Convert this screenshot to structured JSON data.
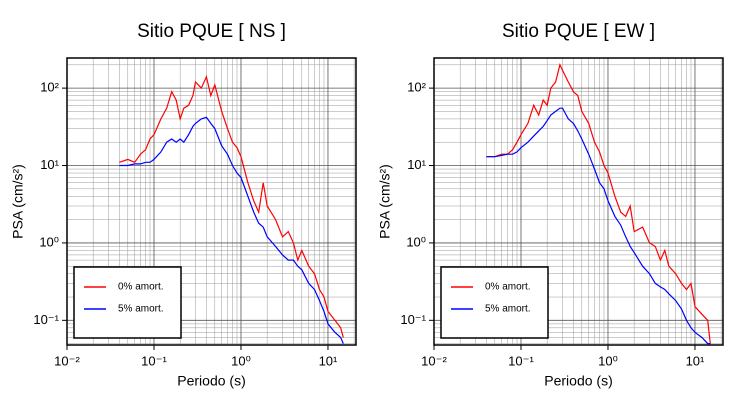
{
  "chart_data": [
    {
      "type": "line",
      "title": "Sitio PQUE [ NS ]",
      "x_label": "Periodo (s)",
      "y_label": "PSA (cm/s²)",
      "log_x": true,
      "log_y": true,
      "grid": true,
      "legend": "lower left",
      "xlim": [
        0.01,
        21
      ],
      "ylim": [
        0.048,
        245
      ],
      "xticks": [
        {
          "value": 0.01,
          "label": "10⁻²"
        },
        {
          "value": 0.1,
          "label": "10⁻¹"
        },
        {
          "value": 1,
          "label": "10⁰"
        },
        {
          "value": 10,
          "label": "10¹"
        }
      ],
      "yticks": [
        {
          "value": 0.1,
          "label": "10⁻¹"
        },
        {
          "value": 1,
          "label": "10⁰"
        },
        {
          "value": 10,
          "label": "10¹"
        },
        {
          "value": 100,
          "label": "10²"
        }
      ],
      "x_minor_ticks": [
        0.02,
        0.03,
        0.04,
        0.05,
        0.06,
        0.07,
        0.08,
        0.09,
        0.2,
        0.3,
        0.4,
        0.5,
        0.6,
        0.7,
        0.8,
        0.9,
        2,
        3,
        4,
        5,
        6,
        7,
        8,
        9,
        20
      ],
      "y_minor_ticks": [
        0.05,
        0.06,
        0.07,
        0.08,
        0.09,
        0.2,
        0.3,
        0.4,
        0.5,
        0.6,
        0.7,
        0.8,
        0.9,
        2,
        3,
        4,
        5,
        6,
        7,
        8,
        9,
        20,
        30,
        40,
        50,
        60,
        70,
        80,
        90,
        200
      ],
      "x": [
        0.04,
        0.05,
        0.06,
        0.07,
        0.08,
        0.09,
        0.1,
        0.12,
        0.14,
        0.16,
        0.18,
        0.2,
        0.22,
        0.25,
        0.28,
        0.3,
        0.35,
        0.4,
        0.45,
        0.5,
        0.6,
        0.7,
        0.8,
        0.9,
        1.0,
        1.2,
        1.4,
        1.6,
        1.8,
        2,
        2.5,
        3,
        3.5,
        4,
        4.5,
        5,
        6,
        7,
        8,
        9,
        10,
        12,
        14,
        15
      ],
      "series": [
        {
          "name": "0% amort.",
          "color": "#ff0000",
          "values": [
            11,
            12,
            11,
            14,
            16,
            22,
            25,
            40,
            55,
            90,
            70,
            40,
            55,
            60,
            80,
            120,
            100,
            140,
            80,
            110,
            50,
            30,
            20,
            17,
            13,
            6,
            3.5,
            2.5,
            6,
            3,
            2,
            1.2,
            1.4,
            1.0,
            0.6,
            0.8,
            0.5,
            0.4,
            0.25,
            0.2,
            0.13,
            0.1,
            0.08,
            0.06
          ]
        },
        {
          "name": "5% amort.",
          "color": "#0000ff",
          "values": [
            10,
            10,
            10.5,
            10.5,
            11,
            11,
            12,
            15,
            20,
            22,
            20,
            22,
            20,
            25,
            32,
            35,
            40,
            42,
            35,
            30,
            18,
            14,
            10,
            8,
            7,
            4,
            2.5,
            1.8,
            1.6,
            1.2,
            0.9,
            0.7,
            0.6,
            0.6,
            0.5,
            0.45,
            0.3,
            0.25,
            0.18,
            0.13,
            0.09,
            0.07,
            0.06,
            0.05
          ]
        }
      ]
    },
    {
      "type": "line",
      "title": "Sitio PQUE [ EW ]",
      "x_label": "Periodo (s)",
      "y_label": "PSA (cm/s²)",
      "log_x": true,
      "log_y": true,
      "grid": true,
      "legend": "lower left",
      "xlim": [
        0.01,
        21
      ],
      "ylim": [
        0.048,
        245
      ],
      "xticks": [
        {
          "value": 0.01,
          "label": "10⁻²"
        },
        {
          "value": 0.1,
          "label": "10⁻¹"
        },
        {
          "value": 1,
          "label": "10⁰"
        },
        {
          "value": 10,
          "label": "10¹"
        }
      ],
      "yticks": [
        {
          "value": 0.1,
          "label": "10⁻¹"
        },
        {
          "value": 1,
          "label": "10⁰"
        },
        {
          "value": 10,
          "label": "10¹"
        },
        {
          "value": 100,
          "label": "10²"
        }
      ],
      "x_minor_ticks": [
        0.02,
        0.03,
        0.04,
        0.05,
        0.06,
        0.07,
        0.08,
        0.09,
        0.2,
        0.3,
        0.4,
        0.5,
        0.6,
        0.7,
        0.8,
        0.9,
        2,
        3,
        4,
        5,
        6,
        7,
        8,
        9,
        20
      ],
      "y_minor_ticks": [
        0.05,
        0.06,
        0.07,
        0.08,
        0.09,
        0.2,
        0.3,
        0.4,
        0.5,
        0.6,
        0.7,
        0.8,
        0.9,
        2,
        3,
        4,
        5,
        6,
        7,
        8,
        9,
        20,
        30,
        40,
        50,
        60,
        70,
        80,
        90,
        200
      ],
      "x": [
        0.04,
        0.05,
        0.06,
        0.07,
        0.08,
        0.09,
        0.1,
        0.12,
        0.14,
        0.16,
        0.18,
        0.2,
        0.22,
        0.25,
        0.28,
        0.3,
        0.35,
        0.4,
        0.45,
        0.5,
        0.6,
        0.7,
        0.8,
        0.9,
        1.0,
        1.2,
        1.4,
        1.6,
        1.8,
        2,
        2.5,
        3,
        3.5,
        4,
        4.5,
        5,
        6,
        7,
        8,
        9,
        10,
        12,
        14,
        15
      ],
      "series": [
        {
          "name": "0% amort.",
          "color": "#ff0000",
          "values": [
            13,
            13,
            14,
            14,
            16,
            20,
            25,
            35,
            60,
            45,
            70,
            60,
            100,
            120,
            200,
            170,
            120,
            90,
            80,
            50,
            35,
            20,
            15,
            10,
            8,
            4,
            2.5,
            2.2,
            3,
            1.4,
            1.6,
            1.0,
            0.9,
            0.6,
            0.8,
            0.5,
            0.4,
            0.3,
            0.25,
            0.3,
            0.15,
            0.12,
            0.1,
            0.05
          ]
        },
        {
          "name": "5% amort.",
          "color": "#0000ff",
          "values": [
            13,
            13,
            13.5,
            14,
            14,
            15,
            17,
            20,
            24,
            28,
            32,
            38,
            45,
            50,
            55,
            55,
            40,
            35,
            28,
            22,
            14,
            9,
            6,
            5,
            3.5,
            2.2,
            1.7,
            1.2,
            0.9,
            0.75,
            0.5,
            0.4,
            0.3,
            0.27,
            0.25,
            0.22,
            0.18,
            0.14,
            0.1,
            0.08,
            0.07,
            0.06,
            0.05,
            0.05
          ]
        }
      ]
    }
  ]
}
